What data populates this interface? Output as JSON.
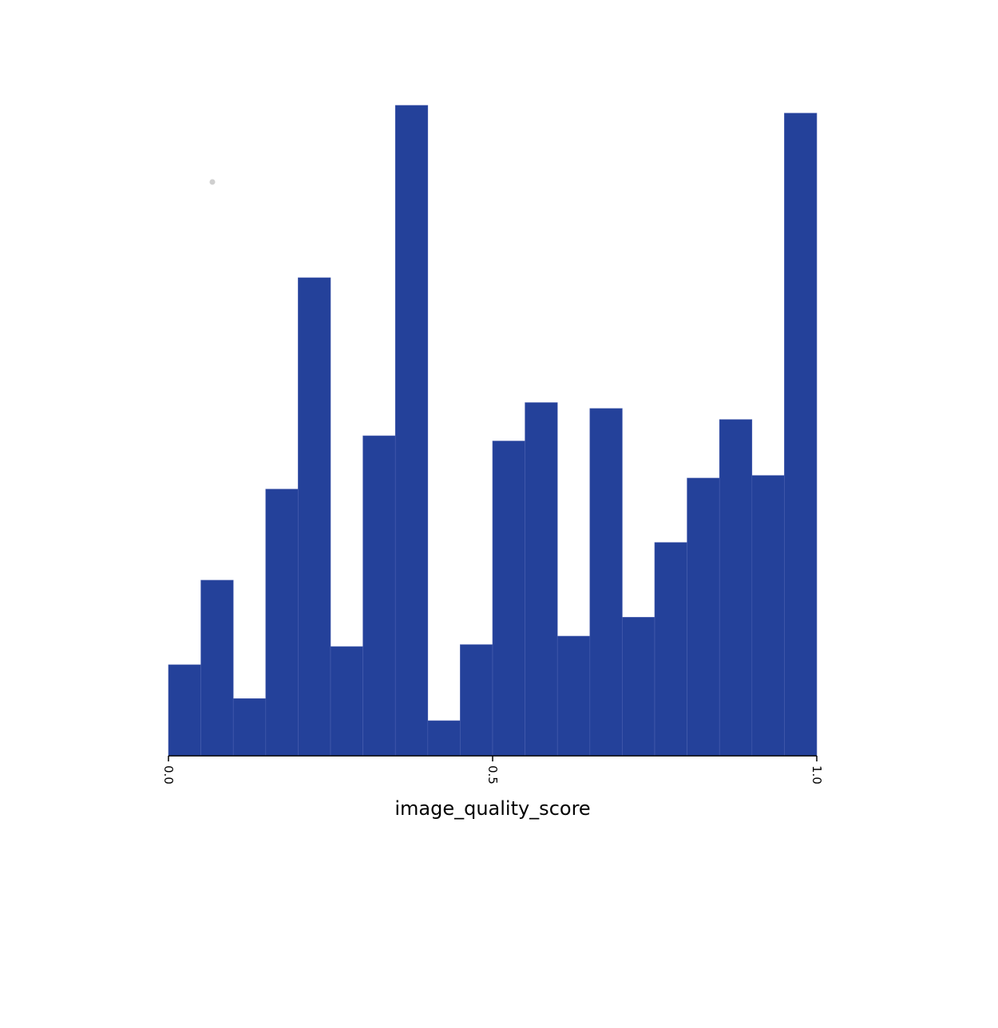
{
  "chart_data": {
    "type": "bar",
    "subtype": "histogram",
    "xlabel": "image_quality_score",
    "ylabel": "",
    "title": "",
    "xlim": [
      0.0,
      1.0
    ],
    "ylim": [
      0,
      1
    ],
    "x_ticks": [
      "0.0",
      "0.5",
      "1.0"
    ],
    "bin_width": 0.05,
    "bin_edges": [
      0.0,
      0.05,
      0.1,
      0.15,
      0.2,
      0.25,
      0.3,
      0.35,
      0.4,
      0.45,
      0.5,
      0.55,
      0.6,
      0.65,
      0.7,
      0.75,
      0.8,
      0.85,
      0.9,
      0.95,
      1.0
    ],
    "values": [
      0.14,
      0.27,
      0.088,
      0.41,
      0.735,
      0.168,
      0.492,
      1.0,
      0.054,
      0.171,
      0.484,
      0.543,
      0.184,
      0.534,
      0.213,
      0.328,
      0.427,
      0.517,
      0.431,
      0.988
    ],
    "y_axis_shown": false,
    "grid": false,
    "legend": "none",
    "colors": {
      "bar": "#24419a",
      "bar_edge": "#4a5fb0",
      "axis": "#000000",
      "background": "#ffffff"
    }
  }
}
